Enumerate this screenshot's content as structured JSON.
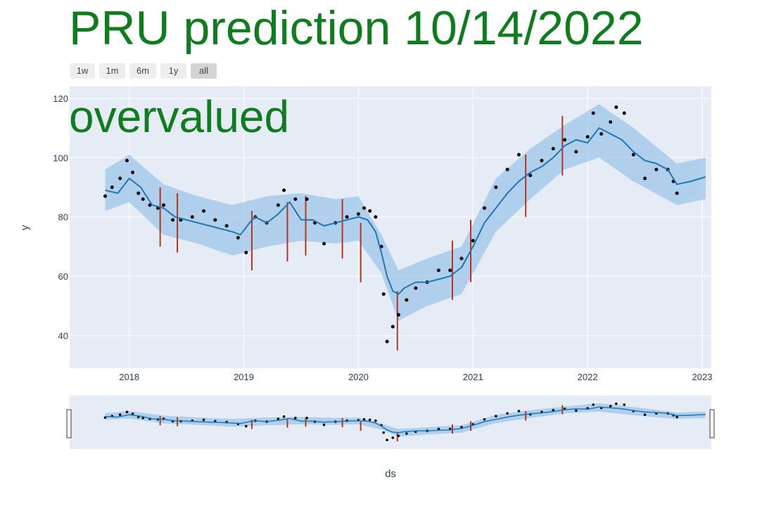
{
  "title": "PRU prediction 10/14/2022",
  "verdict": "overvalued",
  "range_buttons": [
    "1w",
    "1m",
    "6m",
    "1y",
    "all"
  ],
  "active_range": "all",
  "colors": {
    "text_green": "#0f7d1e",
    "plot_bg": "#e5ecf6",
    "forecast_line": "#1f77b4",
    "band": "#9ec5e8",
    "actual_points": "#000000",
    "changepoints": "#b5361b"
  },
  "chart_data": {
    "type": "line",
    "xlabel": "ds",
    "ylabel": "y",
    "x_ticks": [
      "2018",
      "2019",
      "2020",
      "2021",
      "2022",
      "2023"
    ],
    "y_ticks": [
      40,
      60,
      80,
      100,
      120
    ],
    "xlim": [
      2017.48,
      2023.08
    ],
    "ylim": [
      29,
      124
    ],
    "grid": true,
    "series": [
      {
        "role": "forecast",
        "x": [
          2017.79,
          2017.9,
          2018.0,
          2018.1,
          2018.2,
          2018.3,
          2018.4,
          2018.5,
          2018.6,
          2018.7,
          2018.8,
          2018.9,
          2018.97,
          2019.05,
          2019.1,
          2019.2,
          2019.3,
          2019.4,
          2019.5,
          2019.6,
          2019.7,
          2019.8,
          2019.9,
          2020.0,
          2020.08,
          2020.15,
          2020.2,
          2020.25,
          2020.3,
          2020.35,
          2020.4,
          2020.5,
          2020.6,
          2020.7,
          2020.8,
          2020.9,
          2021.0,
          2021.1,
          2021.2,
          2021.3,
          2021.4,
          2021.5,
          2021.6,
          2021.7,
          2021.8,
          2021.9,
          2022.0,
          2022.1,
          2022.2,
          2022.3,
          2022.4,
          2022.5,
          2022.6,
          2022.7,
          2022.78,
          2022.9,
          2023.03
        ],
        "y": [
          89,
          88,
          93,
          90,
          84,
          83,
          80,
          79,
          78,
          77,
          76,
          75,
          74,
          78,
          80,
          78,
          81,
          85,
          79,
          79,
          77,
          78,
          79,
          80,
          79,
          75,
          68,
          60,
          55,
          54,
          56,
          58,
          58,
          59,
          60,
          63,
          70,
          78,
          83,
          88,
          92,
          95,
          97,
          100,
          104,
          106,
          105,
          110,
          108,
          106,
          102,
          99,
          98,
          96,
          91,
          92,
          93.5
        ]
      },
      {
        "role": "uncertainty_band",
        "x": [
          2017.79,
          2018.0,
          2018.3,
          2018.6,
          2018.9,
          2019.2,
          2019.5,
          2019.8,
          2020.0,
          2020.2,
          2020.35,
          2020.6,
          2020.9,
          2021.2,
          2021.5,
          2021.8,
          2022.1,
          2022.4,
          2022.78,
          2023.03
        ],
        "upper": [
          96,
          101,
          91,
          87,
          84,
          87,
          88,
          86,
          87,
          74,
          62,
          66,
          70,
          93,
          103,
          111,
          118,
          110,
          98,
          100
        ],
        "lower": [
          82,
          85,
          74,
          71,
          67,
          70,
          72,
          71,
          72,
          61,
          45,
          50,
          54,
          75,
          86,
          96,
          100,
          92,
          84,
          86
        ]
      },
      {
        "role": "actual",
        "x": [
          2017.79,
          2017.85,
          2017.92,
          2017.98,
          2018.03,
          2018.08,
          2018.12,
          2018.18,
          2018.25,
          2018.3,
          2018.38,
          2018.45,
          2018.55,
          2018.65,
          2018.75,
          2018.85,
          2018.95,
          2019.02,
          2019.1,
          2019.2,
          2019.3,
          2019.35,
          2019.45,
          2019.55,
          2019.62,
          2019.7,
          2019.8,
          2019.9,
          2020.0,
          2020.05,
          2020.1,
          2020.15,
          2020.2,
          2020.22,
          2020.25,
          2020.3,
          2020.35,
          2020.42,
          2020.5,
          2020.6,
          2020.7,
          2020.8,
          2020.9,
          2021.0,
          2021.1,
          2021.2,
          2021.3,
          2021.4,
          2021.5,
          2021.6,
          2021.7,
          2021.8,
          2021.9,
          2022.0,
          2022.05,
          2022.12,
          2022.2,
          2022.25,
          2022.32,
          2022.4,
          2022.5,
          2022.6,
          2022.7,
          2022.75,
          2022.78
        ],
        "y": [
          87,
          90,
          93,
          99,
          95,
          88,
          86,
          84,
          83,
          84,
          79,
          79,
          80,
          82,
          79,
          77,
          73,
          68,
          80,
          78,
          84,
          89,
          86,
          86,
          78,
          71,
          78,
          80,
          81,
          83,
          82,
          80,
          70,
          54,
          38,
          43,
          47,
          52,
          56,
          58,
          62,
          62,
          66,
          72,
          83,
          90,
          96,
          101,
          94,
          99,
          103,
          106,
          102,
          107,
          115,
          108,
          112,
          117,
          115,
          101,
          93,
          96,
          96,
          92,
          88
        ]
      }
    ],
    "changepoints": [
      {
        "x": 2018.27,
        "y_low": 70,
        "y_high": 90
      },
      {
        "x": 2018.42,
        "y_low": 68,
        "y_high": 88
      },
      {
        "x": 2019.07,
        "y_low": 62,
        "y_high": 82
      },
      {
        "x": 2019.38,
        "y_low": 65,
        "y_high": 85
      },
      {
        "x": 2019.54,
        "y_low": 67,
        "y_high": 87
      },
      {
        "x": 2019.86,
        "y_low": 66,
        "y_high": 86
      },
      {
        "x": 2020.02,
        "y_low": 58,
        "y_high": 78
      },
      {
        "x": 2020.34,
        "y_low": 35,
        "y_high": 55
      },
      {
        "x": 2020.82,
        "y_low": 52,
        "y_high": 72
      },
      {
        "x": 2020.98,
        "y_low": 58,
        "y_high": 79
      },
      {
        "x": 2021.46,
        "y_low": 80,
        "y_high": 101
      },
      {
        "x": 2021.78,
        "y_low": 94,
        "y_high": 114
      }
    ]
  }
}
